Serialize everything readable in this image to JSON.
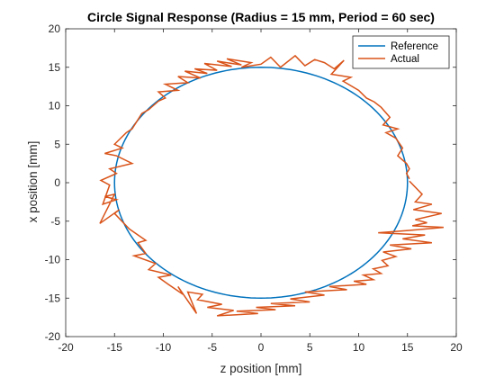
{
  "chart_data": {
    "type": "line",
    "title": "Circle Signal Response (Radius = 15 mm, Period = 60 sec)",
    "xlabel": "z position [mm]",
    "ylabel": "x position [mm]",
    "xlim": [
      -20,
      20
    ],
    "ylim": [
      -20,
      20
    ],
    "xticks": [
      -20,
      -15,
      -10,
      -5,
      0,
      5,
      10,
      15,
      20
    ],
    "yticks": [
      -20,
      -15,
      -10,
      -5,
      0,
      5,
      10,
      15,
      20
    ],
    "grid": false,
    "legend_position": "top-right",
    "series": [
      {
        "name": "Reference",
        "color": "#0072BD",
        "kind": "circle",
        "radius": 15,
        "center": [
          0,
          0
        ]
      },
      {
        "name": "Actual",
        "color": "#D95319",
        "kind": "path",
        "points": [
          [
            15.2,
            0.2
          ],
          [
            16.5,
            -1.5
          ],
          [
            15.8,
            -2.5
          ],
          [
            17.5,
            -2.8
          ],
          [
            15.6,
            -3.5
          ],
          [
            18.5,
            -4.0
          ],
          [
            15.8,
            -4.8
          ],
          [
            17.0,
            -5.2
          ],
          [
            15.5,
            -5.6
          ],
          [
            18.7,
            -5.8
          ],
          [
            15.2,
            -6.2
          ],
          [
            12.0,
            -6.5
          ],
          [
            16.8,
            -6.8
          ],
          [
            14.5,
            -7.3
          ],
          [
            17.5,
            -7.8
          ],
          [
            13.2,
            -8.1
          ],
          [
            15.4,
            -8.6
          ],
          [
            12.5,
            -9.0
          ],
          [
            13.8,
            -9.6
          ],
          [
            12.4,
            -10.1
          ],
          [
            13.0,
            -10.8
          ],
          [
            11.5,
            -11.2
          ],
          [
            12.3,
            -11.8
          ],
          [
            10.5,
            -12.0
          ],
          [
            11.5,
            -12.6
          ],
          [
            9.5,
            -12.8
          ],
          [
            10.8,
            -13.2
          ],
          [
            7.0,
            -13.5
          ],
          [
            8.8,
            -13.9
          ],
          [
            4.5,
            -14.2
          ],
          [
            6.5,
            -14.6
          ],
          [
            3.0,
            -15.1
          ],
          [
            5.0,
            -15.5
          ],
          [
            1.0,
            -15.7
          ],
          [
            3.5,
            -16.0
          ],
          [
            -0.5,
            -16.2
          ],
          [
            1.5,
            -16.5
          ],
          [
            -2.5,
            -16.7
          ],
          [
            -0.3,
            -17.0
          ],
          [
            -4.5,
            -17.3
          ],
          [
            -2.8,
            -16.6
          ],
          [
            -5.5,
            -16.2
          ],
          [
            -4.0,
            -15.8
          ],
          [
            -6.5,
            -15.2
          ],
          [
            -6.0,
            -14.5
          ],
          [
            -7.5,
            -14.2
          ],
          [
            -6.6,
            -17.0
          ],
          [
            -8.5,
            -13.5
          ],
          [
            -8.0,
            -14.5
          ],
          [
            -9.5,
            -13.2
          ],
          [
            -10.5,
            -12.3
          ],
          [
            -9.2,
            -12.0
          ],
          [
            -11.5,
            -11.3
          ],
          [
            -10.8,
            -10.5
          ],
          [
            -13.0,
            -9.5
          ],
          [
            -11.8,
            -9.2
          ],
          [
            -12.6,
            -7.8
          ],
          [
            -11.8,
            -7.5
          ],
          [
            -13.5,
            -6.0
          ],
          [
            -15.0,
            -4.0
          ],
          [
            -14.5,
            -3.5
          ],
          [
            -16.5,
            -5.3
          ],
          [
            -15.0,
            -1.5
          ],
          [
            -16.0,
            -1.8
          ],
          [
            -14.8,
            -2.2
          ],
          [
            -16.2,
            -2.8
          ],
          [
            -15.5,
            -0.3
          ],
          [
            -16.4,
            0.3
          ],
          [
            -14.8,
            1.2
          ],
          [
            -15.5,
            1.8
          ],
          [
            -13.2,
            2.5
          ],
          [
            -14.8,
            3.5
          ],
          [
            -16.0,
            3.8
          ],
          [
            -14.2,
            4.5
          ],
          [
            -15.0,
            5.0
          ],
          [
            -13.8,
            6.5
          ],
          [
            -13.2,
            7.0
          ],
          [
            -12.2,
            9.0
          ],
          [
            -11.5,
            9.5
          ],
          [
            -10.5,
            10.6
          ],
          [
            -9.8,
            11.0
          ],
          [
            -10.5,
            11.8
          ],
          [
            -8.5,
            12.0
          ],
          [
            -9.8,
            12.8
          ],
          [
            -7.5,
            13.0
          ],
          [
            -8.5,
            13.8
          ],
          [
            -6.2,
            13.6
          ],
          [
            -7.8,
            14.5
          ],
          [
            -5.5,
            14.2
          ],
          [
            -6.8,
            14.8
          ],
          [
            -4.5,
            14.6
          ],
          [
            -5.8,
            15.5
          ],
          [
            -3.0,
            15.1
          ],
          [
            -4.5,
            15.8
          ],
          [
            -2.0,
            15.3
          ],
          [
            -3.5,
            16.1
          ],
          [
            -1.0,
            15.6
          ],
          [
            -2.0,
            15.0
          ],
          [
            0.0,
            15.4
          ],
          [
            1.0,
            16.3
          ],
          [
            2.0,
            15.0
          ],
          [
            3.5,
            16.5
          ],
          [
            4.5,
            15.2
          ],
          [
            5.5,
            16.0
          ],
          [
            6.5,
            15.6
          ],
          [
            7.5,
            14.8
          ],
          [
            8.5,
            15.9
          ],
          [
            7.2,
            14.1
          ],
          [
            9.2,
            13.7
          ],
          [
            8.4,
            13.2
          ],
          [
            10.0,
            12.0
          ],
          [
            10.8,
            11.0
          ],
          [
            11.6,
            10.5
          ],
          [
            12.3,
            9.8
          ],
          [
            13.2,
            8.5
          ],
          [
            12.5,
            7.5
          ],
          [
            14.0,
            7.0
          ],
          [
            12.8,
            6.5
          ],
          [
            13.8,
            5.8
          ],
          [
            14.5,
            4.5
          ],
          [
            14.0,
            3.5
          ],
          [
            14.9,
            2.5
          ],
          [
            15.2,
            1.8
          ],
          [
            14.9,
            1.2
          ],
          [
            15.2,
            0.5
          ]
        ]
      }
    ]
  }
}
